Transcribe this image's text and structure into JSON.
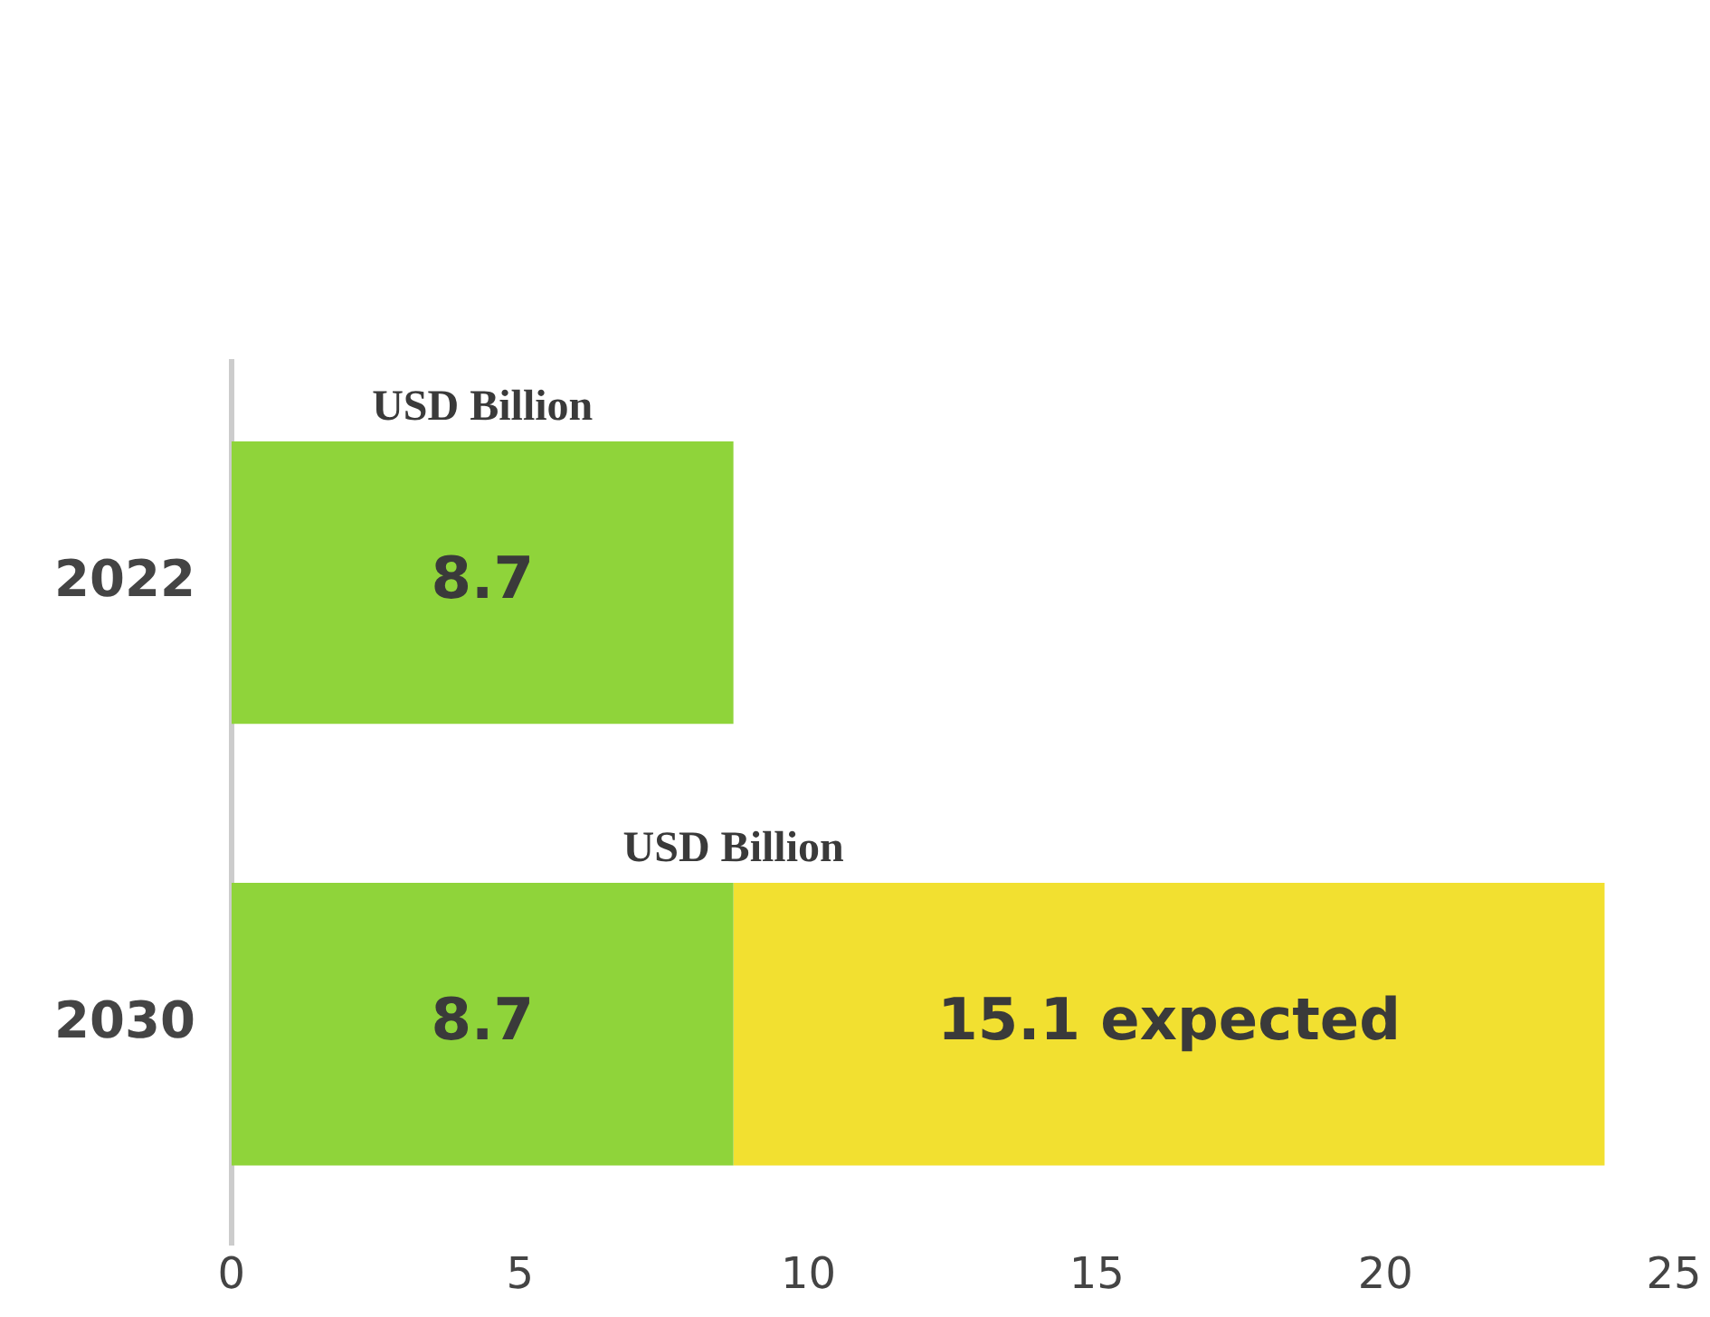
{
  "chart_data": {
    "type": "bar",
    "orientation": "horizontal",
    "stacked": true,
    "categories": [
      "2022",
      "2030"
    ],
    "series": [
      {
        "color": "#8fd43a",
        "values": [
          8.7,
          8.7
        ],
        "value_labels": [
          "8.7",
          "8.7"
        ]
      },
      {
        "color": "#f2e030",
        "values": [
          null,
          15.1
        ],
        "value_labels": [
          null,
          "15.1 expected"
        ]
      }
    ],
    "xlim": [
      0,
      25
    ],
    "xticks": [
      0,
      5,
      10,
      15,
      20,
      25
    ],
    "grid": false,
    "legend": false,
    "annotations": [
      "USD Billion",
      "USD Billion"
    ]
  }
}
